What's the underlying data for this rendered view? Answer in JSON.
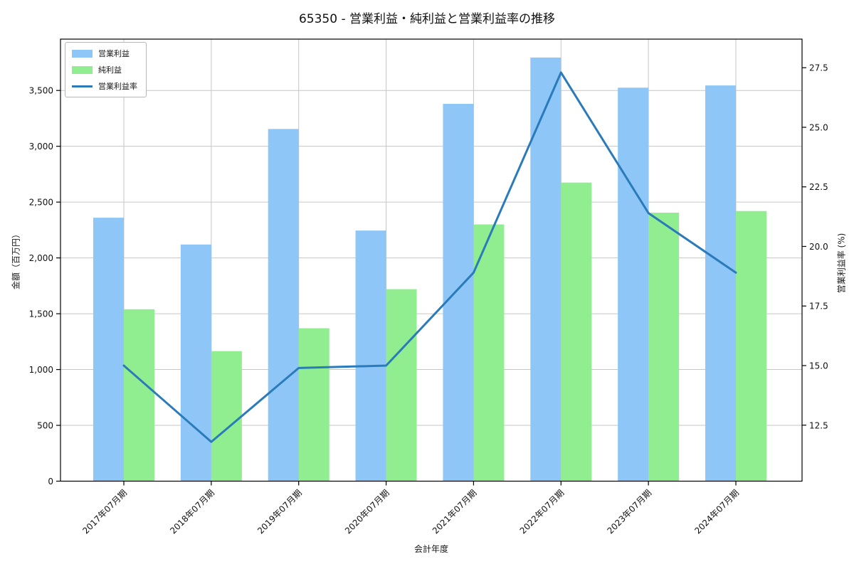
{
  "chart_data": {
    "type": "bar+line combo (dual axis)",
    "title": "65350 - 営業利益・純利益と営業利益率の推移",
    "xlabel": "会計年度",
    "ylabel_left": "金額（百万円）",
    "ylabel_right": "営業利益率 (%)",
    "categories": [
      "2017年07月期",
      "2018年07月期",
      "2019年07月期",
      "2020年07月期",
      "2021年07月期",
      "2022年07月期",
      "2023年07月期",
      "2024年07月期"
    ],
    "series": [
      {
        "id": "operating-profit",
        "name": "営業利益",
        "type": "bar",
        "axis": "left",
        "color": "#8dc6f7",
        "values": [
          2360,
          2120,
          3155,
          2245,
          3380,
          3795,
          3525,
          3545
        ]
      },
      {
        "id": "net-profit",
        "name": "純利益",
        "type": "bar",
        "axis": "left",
        "color": "#90ee90",
        "values": [
          1540,
          1165,
          1370,
          1720,
          2300,
          2675,
          2405,
          2420
        ]
      },
      {
        "id": "operating-margin",
        "name": "営業利益率",
        "type": "line",
        "axis": "right",
        "color": "#2b7bba",
        "values": [
          15.0,
          11.8,
          14.9,
          15.0,
          18.9,
          27.3,
          21.4,
          18.9
        ]
      }
    ],
    "left_axis": {
      "lim": [
        0,
        3960
      ],
      "ticks": [
        0,
        500,
        1000,
        1500,
        2000,
        2500,
        3000,
        3500
      ],
      "labels": [
        "0",
        "500",
        "1,000",
        "1,500",
        "2,000",
        "2,500",
        "3,000",
        "3,500"
      ]
    },
    "right_axis": {
      "lim": [
        10.15,
        28.7
      ],
      "ticks": [
        12.5,
        15.0,
        17.5,
        20.0,
        22.5,
        25.0,
        27.5
      ],
      "labels": [
        "12.5",
        "15.0",
        "17.5",
        "20.0",
        "22.5",
        "25.0",
        "27.5"
      ]
    },
    "grid": true,
    "legend_position": "upper-left",
    "style": {
      "grid_color": "#c6c6c6",
      "spine_color": "#000000",
      "text_color": "#111111",
      "background": "#ffffff"
    }
  }
}
